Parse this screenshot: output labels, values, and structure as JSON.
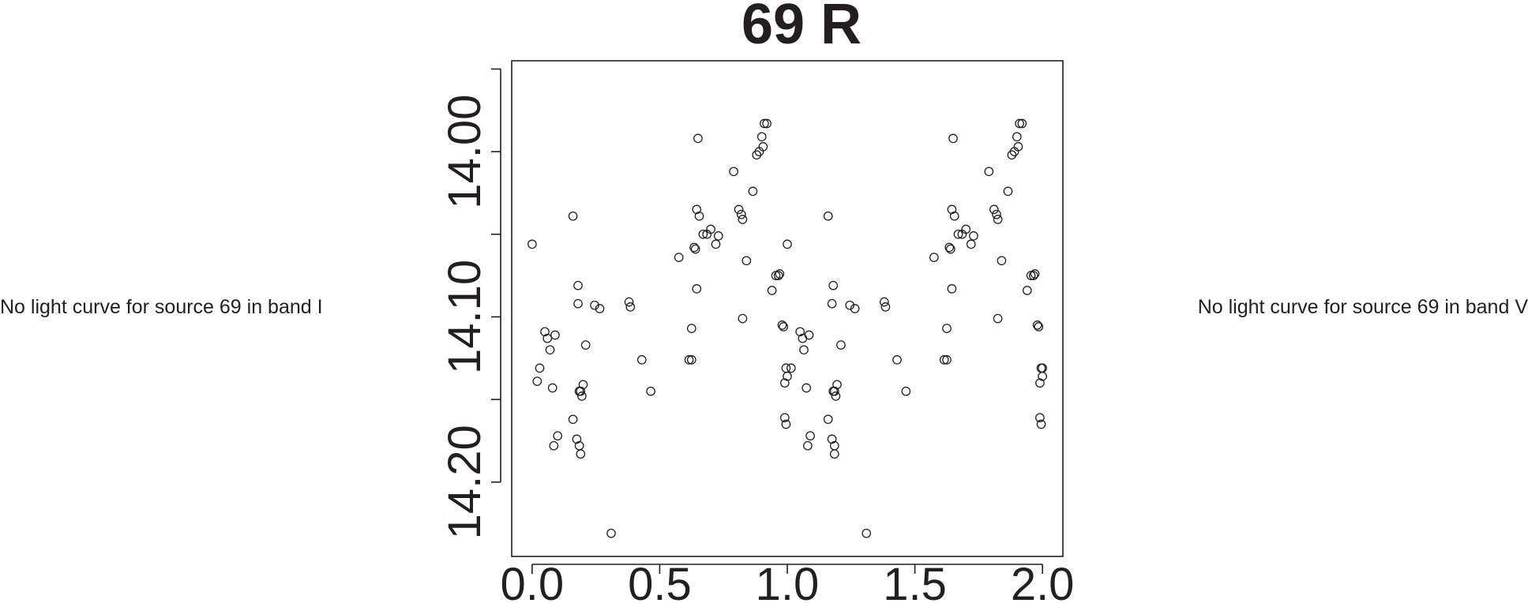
{
  "notes": {
    "left": "No light curve for source 69 in band I",
    "right": "No light curve for source 69 in band V"
  },
  "chart_data": {
    "type": "scatter",
    "title": "69 R",
    "xlabel": "",
    "ylabel": "",
    "xlim": [
      -0.08,
      2.08
    ],
    "ylim": [
      14.245,
      13.945
    ],
    "y_reversed": true,
    "x_ticks": [
      "0.0",
      "0.5",
      "1.0",
      "1.5",
      "2.0"
    ],
    "y_ticks": [
      "14.00",
      "14.10",
      "14.20"
    ],
    "grid": false,
    "marker": "open-circle",
    "series": [
      {
        "x": [
          0.0,
          0.02,
          0.03,
          0.05,
          0.06,
          0.07,
          0.08,
          0.085,
          0.09,
          0.1,
          0.16,
          0.16,
          0.175,
          0.18,
          0.18,
          0.185,
          0.185,
          0.19,
          0.19,
          0.195,
          0.2,
          0.21,
          0.245,
          0.265,
          0.31,
          0.38,
          0.385,
          0.43,
          0.465,
          0.575,
          0.615,
          0.625,
          0.625,
          0.635,
          0.64,
          0.645,
          0.645,
          0.655,
          0.65,
          0.67,
          0.685,
          0.7,
          0.72,
          0.73,
          0.79,
          0.81,
          0.82,
          0.825,
          0.825,
          0.84,
          0.865,
          0.88,
          0.89,
          0.9,
          0.905,
          0.91,
          0.92,
          0.94,
          0.955,
          0.965,
          0.97,
          0.98,
          0.985,
          0.99,
          0.99,
          0.995,
          0.995,
          1.0,
          1.0,
          1.015,
          1.05,
          1.06,
          1.065,
          1.075,
          1.08,
          1.085,
          1.09,
          1.16,
          1.16,
          1.175,
          1.175,
          1.18,
          1.18,
          1.185,
          1.185,
          1.185,
          1.19,
          1.195,
          1.21,
          1.245,
          1.265,
          1.31,
          1.38,
          1.385,
          1.43,
          1.465
        ],
        "y": [
          14.056,
          14.139,
          14.131,
          14.109,
          14.113,
          14.12,
          14.143,
          14.178,
          14.111,
          14.172,
          14.039,
          14.162,
          14.174,
          14.092,
          14.081,
          14.145,
          14.178,
          14.183,
          14.145,
          14.148,
          14.141,
          14.117,
          14.093,
          14.095,
          14.231,
          14.091,
          14.094,
          14.126,
          14.145,
          14.064,
          14.126,
          14.107,
          14.126,
          14.058,
          14.059,
          14.083,
          14.035,
          14.039,
          13.992,
          14.05,
          14.05,
          14.047,
          14.056,
          14.051,
          14.012,
          14.035,
          14.038,
          14.041,
          14.101,
          14.066,
          14.024,
          14.002,
          14.0,
          13.991,
          13.997,
          13.983,
          13.983,
          14.084,
          14.075,
          14.075,
          14.074,
          14.105,
          14.106,
          14.14,
          14.161,
          14.131,
          14.165,
          14.056,
          14.136,
          14.131,
          14.109,
          14.113,
          14.12,
          14.143,
          14.178,
          14.111,
          14.172,
          14.039,
          14.162,
          14.174,
          14.092,
          14.081,
          14.145,
          14.178,
          14.183,
          14.145,
          14.148,
          14.141,
          14.117,
          14.093,
          14.095,
          14.231,
          14.091,
          14.094,
          14.126,
          14.145
        ]
      },
      {
        "x": [
          1.575,
          1.615,
          1.625,
          1.625,
          1.635,
          1.64,
          1.645,
          1.645,
          1.655,
          1.65,
          1.67,
          1.685,
          1.7,
          1.72,
          1.73,
          1.79,
          1.81,
          1.82,
          1.825,
          1.825,
          1.84,
          1.865,
          1.88,
          1.89,
          1.9,
          1.905,
          1.91,
          1.92,
          1.94,
          1.955,
          1.965,
          1.97,
          1.98,
          1.985,
          1.99,
          1.99,
          1.995,
          1.995,
          2.0,
          2.0
        ],
        "y": [
          14.064,
          14.126,
          14.107,
          14.126,
          14.058,
          14.059,
          14.083,
          14.035,
          14.039,
          13.992,
          14.05,
          14.05,
          14.047,
          14.056,
          14.051,
          14.012,
          14.035,
          14.038,
          14.041,
          14.101,
          14.066,
          14.024,
          14.002,
          14.0,
          13.991,
          13.997,
          13.983,
          13.983,
          14.084,
          14.075,
          14.075,
          14.074,
          14.105,
          14.106,
          14.14,
          14.161,
          14.131,
          14.165,
          14.131,
          14.136
        ]
      }
    ]
  }
}
